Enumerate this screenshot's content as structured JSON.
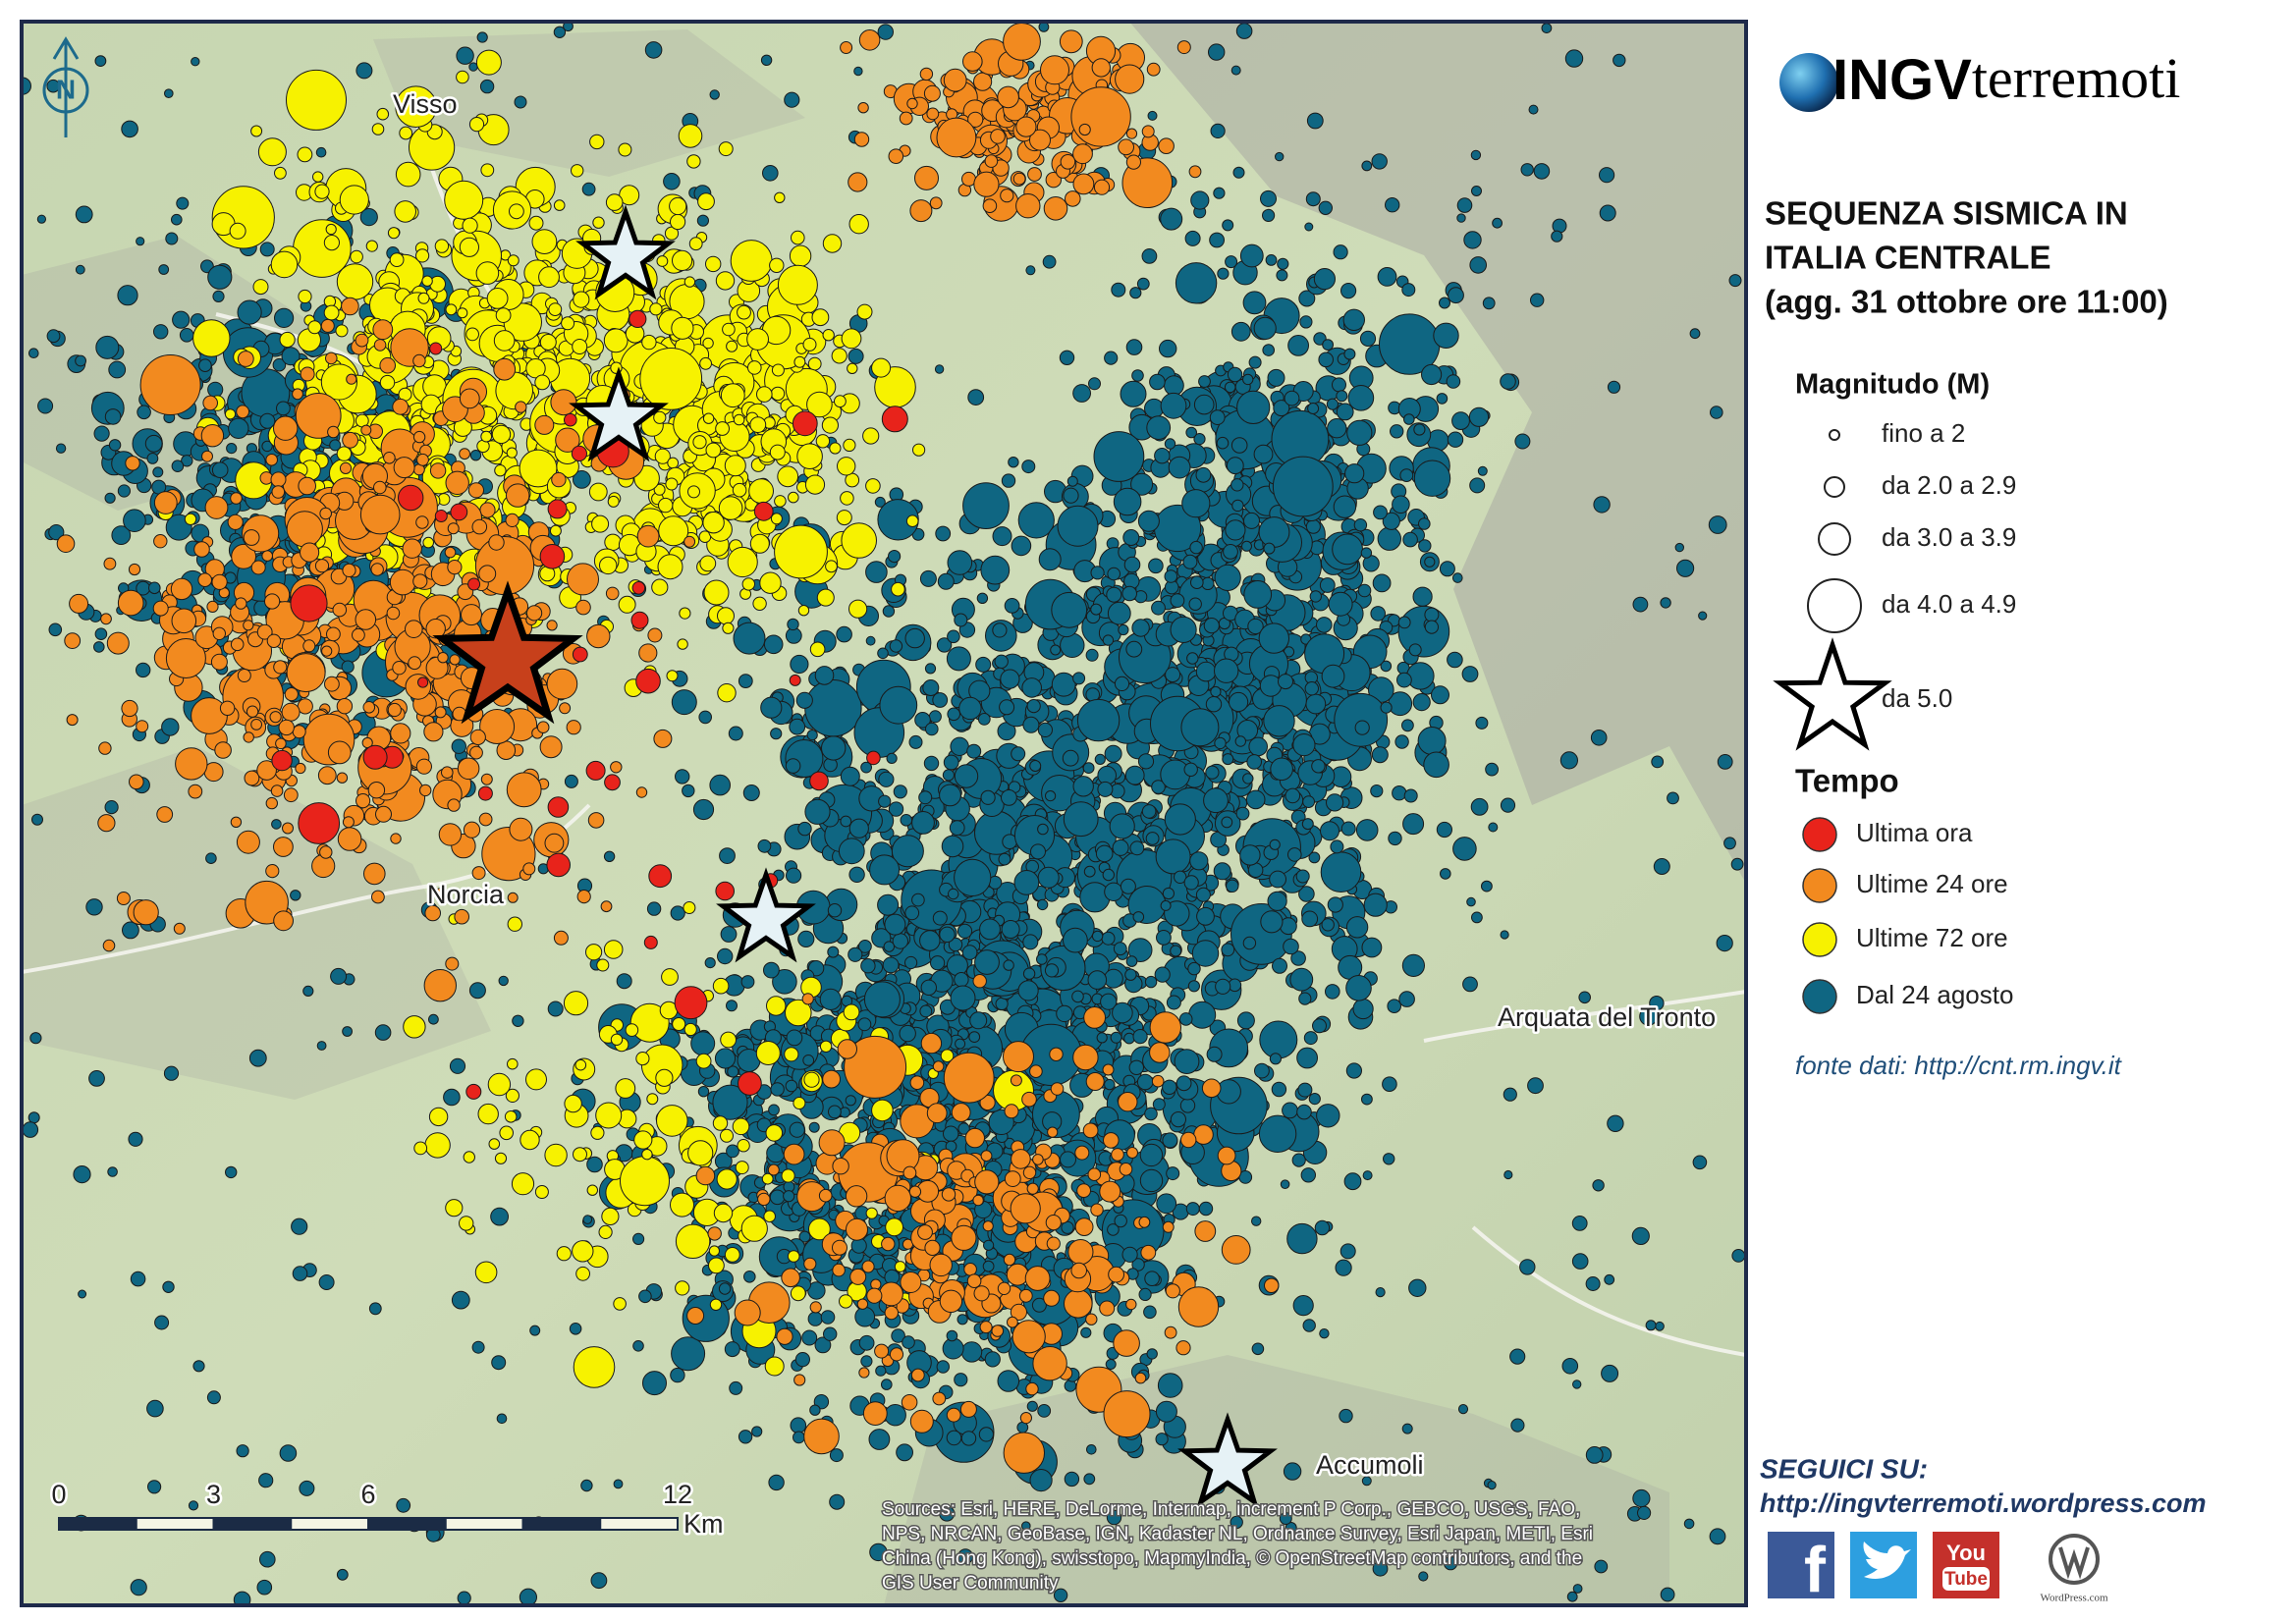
{
  "header": {
    "logo_bold": "INGV",
    "logo_rest": "terremoti"
  },
  "title": [
    "SEQUENZA SISMICA IN",
    "ITALIA CENTRALE",
    "(agg. 31 ottobre ore 11:00)"
  ],
  "legend": {
    "magnitude_title": "Magnitudo (M)",
    "magnitude_items": [
      "fino a 2",
      "da 2.0 a 2.9",
      "da 3.0 a 3.9",
      "da 4.0 a 4.9",
      "da 5.0"
    ],
    "time_title": "Tempo",
    "time_items": [
      {
        "label": "Ultima ora",
        "color": "#e8231b"
      },
      {
        "label": "Ultime 24 ore",
        "color": "#f28a1f"
      },
      {
        "label": "Ultime 72 ore",
        "color": "#f7f200"
      },
      {
        "label": "Dal 24 agosto",
        "color": "#0f6682"
      }
    ]
  },
  "source": "fonte dati: http://cnt.rm.ingv.it",
  "follow": {
    "label": "SEGUICI SU:",
    "url": "http://ingvterremoti.wordpress.com",
    "facebook": "f",
    "youtube": [
      "You",
      "Tube"
    ],
    "wordpress": "WordPress.com"
  },
  "map": {
    "north": "N",
    "places": [
      "Visso",
      "Norcia",
      "Arquata del Tronto",
      "Accumoli"
    ],
    "scale": {
      "ticks": [
        "0",
        "3",
        "6",
        "12"
      ],
      "unit": "Km"
    },
    "attribution": [
      "Sources: Esri, HERE, DeLorme, Intermap, increment P Corp., GEBCO, USGS, FAO,",
      "NPS, NRCAN, GeoBase, IGN, Kadaster NL, Ordnance Survey, Esri Japan, METI, Esri",
      "China (Hong Kong), swisstopo, MapmyIndia, © OpenStreetMap contributors, and the",
      "GIS User Community"
    ]
  }
}
